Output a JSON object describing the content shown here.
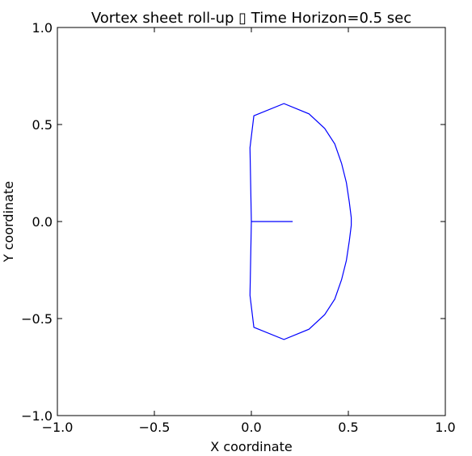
{
  "chart_data": {
    "type": "line",
    "title": "Vortex sheet roll-up ▯ Time Horizon=0.5 sec",
    "xlabel": "X coordinate",
    "ylabel": "Y coordinate",
    "xlim": [
      -1.0,
      1.0
    ],
    "ylim": [
      -1.0,
      1.0
    ],
    "x_ticks": [
      -1.0,
      -0.5,
      0.0,
      0.5,
      1.0
    ],
    "x_tick_labels": [
      "−1.0",
      "−0.5",
      "0.0",
      "0.5",
      "1.0"
    ],
    "y_ticks": [
      1.0,
      0.5,
      0.0,
      -0.5,
      -1.0
    ],
    "y_tick_labels": [
      "1.0",
      "0.5",
      "0.0",
      "−0.5",
      "−1.0"
    ],
    "grid": false,
    "legend": "none",
    "colors": {
      "line": "#0000ff",
      "axes": "#000000",
      "background": "#ffffff"
    },
    "series": [
      {
        "x": [
          0.0,
          -0.007,
          0.013,
          0.168,
          0.297,
          0.378,
          0.43,
          0.465,
          0.49,
          0.505,
          0.515,
          0.515,
          0.505,
          0.49,
          0.465,
          0.43,
          0.378,
          0.297,
          0.168,
          0.013,
          -0.007,
          0.0,
          0.092,
          0.1,
          0.213,
          0.088,
          0.1,
          0.213,
          0.088,
          0.092,
          0.1,
          0.213,
          0.088,
          0.1,
          0.213,
          0.088,
          0.092,
          0.0
        ],
        "y": [
          0.0,
          0.38,
          0.545,
          0.608,
          0.555,
          0.48,
          0.4,
          0.3,
          0.2,
          0.1,
          0.02,
          -0.02,
          -0.1,
          -0.2,
          -0.3,
          -0.4,
          -0.48,
          -0.555,
          -0.608,
          -0.545,
          -0.38,
          -0.0,
          -0.0,
          -0.0,
          -0.0,
          -0.0,
          -0.0,
          -0.0,
          -0.0,
          -0.0,
          -0.0,
          -0.0,
          -0.0,
          -0.0,
          -0.0,
          -0.0,
          -0.0,
          -0.0
        ]
      }
    ]
  }
}
